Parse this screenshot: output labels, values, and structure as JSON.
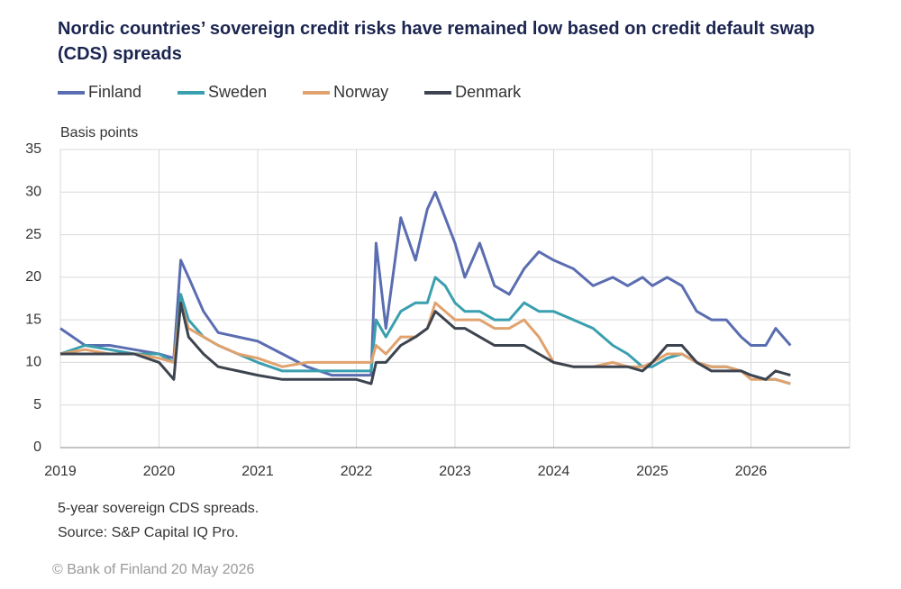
{
  "chart_data": {
    "type": "line",
    "title": "Nordic countries’ sovereign credit risks have remained low based on credit default swap (CDS) spreads",
    "ylabel": "Basis points",
    "note": "5-year sovereign CDS spreads.",
    "source": "Source: S&P Capital IQ Pro.",
    "copyright": "© Bank of Finland 20 May 2026",
    "x": [
      2019,
      2019.25,
      2019.5,
      2019.75,
      2020.0,
      2020.15,
      2020.22,
      2020.3,
      2020.45,
      2020.6,
      2020.8,
      2021.0,
      2021.25,
      2021.5,
      2021.75,
      2022.0,
      2022.15,
      2022.2,
      2022.3,
      2022.45,
      2022.6,
      2022.72,
      2022.8,
      2022.9,
      2023.0,
      2023.1,
      2023.25,
      2023.4,
      2023.55,
      2023.7,
      2023.85,
      2024.0,
      2024.2,
      2024.4,
      2024.6,
      2024.75,
      2024.9,
      2025.0,
      2025.15,
      2025.3,
      2025.45,
      2025.6,
      2025.75,
      2025.9,
      2026.0,
      2026.15,
      2026.25,
      2026.4
    ],
    "series": [
      {
        "name": "Finland",
        "color": "#5a6db0",
        "values": [
          14,
          12,
          12,
          11.5,
          11,
          10.5,
          22,
          20,
          16,
          13.5,
          13,
          12.5,
          11,
          9.5,
          8.5,
          8.5,
          8.5,
          24,
          14,
          27,
          22,
          28,
          30,
          27,
          24,
          20,
          24,
          19,
          18,
          21,
          23,
          22,
          21,
          19,
          20,
          19,
          20,
          19,
          20,
          19,
          16,
          15,
          15,
          13,
          12,
          12,
          14,
          12
        ]
      },
      {
        "name": "Sweden",
        "color": "#3a9fae",
        "values": [
          11,
          12,
          11.5,
          11,
          11,
          10,
          18,
          15,
          13,
          12,
          11,
          10,
          9,
          9,
          9,
          9,
          9,
          15,
          13,
          16,
          17,
          17,
          20,
          19,
          17,
          16,
          16,
          15,
          15,
          17,
          16,
          16,
          15,
          14,
          12,
          11,
          9.5,
          9.5,
          10.5,
          11,
          10,
          9.5,
          9.5,
          9,
          8.5,
          8,
          8,
          7.5
        ]
      },
      {
        "name": "Norway",
        "color": "#e0a26e",
        "values": [
          11,
          11.5,
          11,
          11,
          10.5,
          10,
          17,
          14,
          13,
          12,
          11,
          10.5,
          9.5,
          10,
          10,
          10,
          10,
          12,
          11,
          13,
          13,
          14,
          17,
          16,
          15,
          15,
          15,
          14,
          14,
          15,
          13,
          10,
          9.5,
          9.5,
          10,
          9.5,
          9.5,
          10,
          11,
          11,
          10,
          9.5,
          9.5,
          9,
          8,
          8,
          8,
          7.5
        ]
      },
      {
        "name": "Denmark",
        "color": "#3d4450",
        "values": [
          11,
          11,
          11,
          11,
          10,
          8,
          17,
          13,
          11,
          9.5,
          9,
          8.5,
          8,
          8,
          8,
          8,
          7.5,
          10,
          10,
          12,
          13,
          14,
          16,
          15,
          14,
          14,
          13,
          12,
          12,
          12,
          11,
          10,
          9.5,
          9.5,
          9.5,
          9.5,
          9,
          10,
          12,
          12,
          10,
          9,
          9,
          9,
          8.5,
          8,
          9,
          8.5
        ]
      }
    ],
    "xlim": [
      2019,
      2027
    ],
    "xticks": [
      2019,
      2020,
      2021,
      2022,
      2023,
      2024,
      2025,
      2026
    ],
    "ylim": [
      0,
      35
    ],
    "yticks": [
      0,
      5,
      10,
      15,
      20,
      25,
      30,
      35
    ],
    "grid": true
  }
}
